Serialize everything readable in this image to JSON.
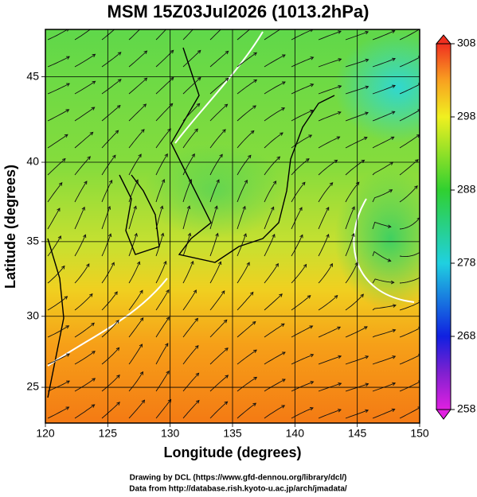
{
  "chart_data": {
    "type": "map",
    "title": "MSM 15Z03Jul2026 (1013.2hPa)",
    "x_label": "Longitude (degrees)",
    "y_label": "Latitude (degrees)",
    "projection": "mercator",
    "xlim": [
      120,
      150
    ],
    "xticks": [
      120,
      125,
      130,
      135,
      140,
      145,
      150
    ],
    "ylim": [
      22.4,
      47.6
    ],
    "yticks": [
      25,
      30,
      35,
      40,
      45
    ],
    "grid": true,
    "colorbar": {
      "lim": [
        258,
        308
      ],
      "ticks": [
        258,
        268,
        278,
        288,
        298,
        308
      ]
    },
    "footer": [
      "Drawing by DCL (https://www.gfd-dennou.org/library/dcl/)",
      "Data from http://database.rish.kyoto-u.ac.jp/arch/jmadata/"
    ]
  }
}
